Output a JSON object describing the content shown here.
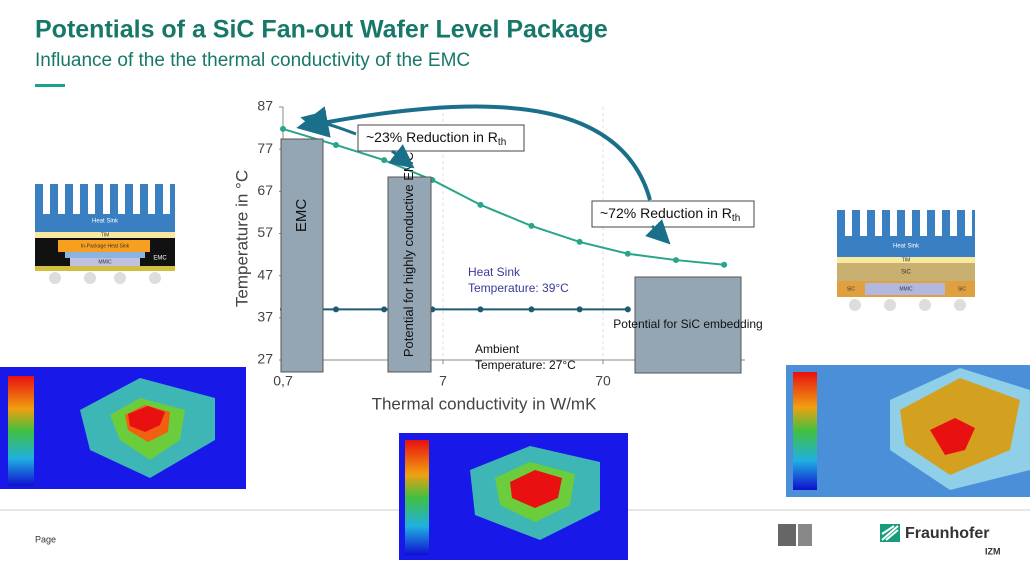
{
  "slide": {
    "title": "Potentials of a SiC Fan-out Wafer Level Package",
    "subtitle": "Influance of the the thermal conductivity of the EMC",
    "footer": "Page",
    "logo": "Fraunhofer",
    "logo_sub": "IZM",
    "left_diagram": [
      "Heat Sink",
      "TIM",
      "In-Package Heat Sink",
      "MMIC",
      "EMC"
    ],
    "right_diagram": [
      "Heat Sink",
      "TIM",
      "SiC",
      "SiC",
      "MMIC",
      "SiC"
    ]
  },
  "chart_data": {
    "type": "line",
    "x_label": "Thermal conductivity in W/mK",
    "y_label": "Temperature in °C",
    "xscale": "log",
    "grid": "x",
    "x": [
      0.7,
      1.5,
      3,
      6,
      12,
      25,
      50,
      100,
      200,
      400
    ],
    "series": [
      {
        "color": "#2aa58a",
        "values": [
          81.8,
          78,
          74.4,
          69.7,
          63.8,
          58.8,
          55,
          52.2,
          50.7,
          49.6
        ]
      },
      {
        "color": "#1f5a73",
        "values": [
          39,
          39,
          39,
          39,
          39,
          39,
          39,
          39,
          null,
          null
        ]
      }
    ],
    "xlim": [
      0.7,
      540
    ],
    "ylim": [
      27,
      87
    ],
    "xticks": [
      {
        "value": 0.7,
        "label": "0,7"
      },
      7,
      70
    ],
    "yticks": [
      27,
      37,
      47,
      57,
      67,
      77,
      87
    ],
    "regions": [
      "EMC",
      "Potential for highly conductive EMC",
      "Potential for SiC embedding"
    ],
    "annotations": [
      {
        "text": "~23% Reduction in R",
        "sub": "th"
      },
      {
        "text": "~72% Reduction in R",
        "sub": "th"
      },
      {
        "text": "Heat Sink",
        "line2": "Temperature: 39°C"
      },
      {
        "text": "Ambient",
        "line2": "Temperature: 27°C"
      }
    ]
  }
}
